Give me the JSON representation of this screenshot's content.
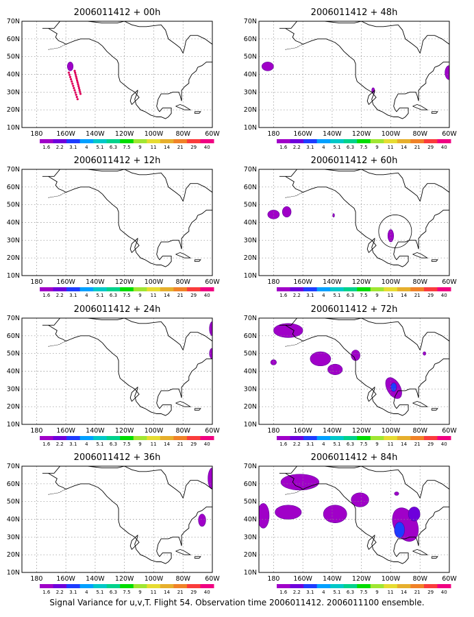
{
  "caption": "Signal Variance for u,v,T. Flight 54. Observation time 2006011412. 2006011100 ensemble.",
  "lat_labels": [
    "10N",
    "20N",
    "30N",
    "40N",
    "50N",
    "60N",
    "70N"
  ],
  "lon_labels": [
    "180",
    "160W",
    "140W",
    "120W",
    "100W",
    "80W",
    "60W"
  ],
  "colorbar": {
    "labels": [
      "1.6",
      "2.2",
      "3.1",
      "4",
      "5.1",
      "6.3",
      "7.5",
      "9",
      "11",
      "14",
      "21",
      "29",
      "40"
    ],
    "colors": [
      "#a000c8",
      "#6e00dc",
      "#1e3cff",
      "#00a0ff",
      "#00c8c8",
      "#00d28c",
      "#00dc00",
      "#a0e632",
      "#e6dc32",
      "#e6af2d",
      "#f08228",
      "#fa3c3c",
      "#f00082"
    ]
  },
  "panels": [
    {
      "title": "2006011412 + 00h"
    },
    {
      "title": "2006011412 + 48h"
    },
    {
      "title": "2006011412 + 12h"
    },
    {
      "title": "2006011412 + 60h"
    },
    {
      "title": "2006011412 + 24h"
    },
    {
      "title": "2006011412 + 72h"
    },
    {
      "title": "2006011412 + 36h"
    },
    {
      "title": "2006011412 + 84h"
    }
  ]
}
